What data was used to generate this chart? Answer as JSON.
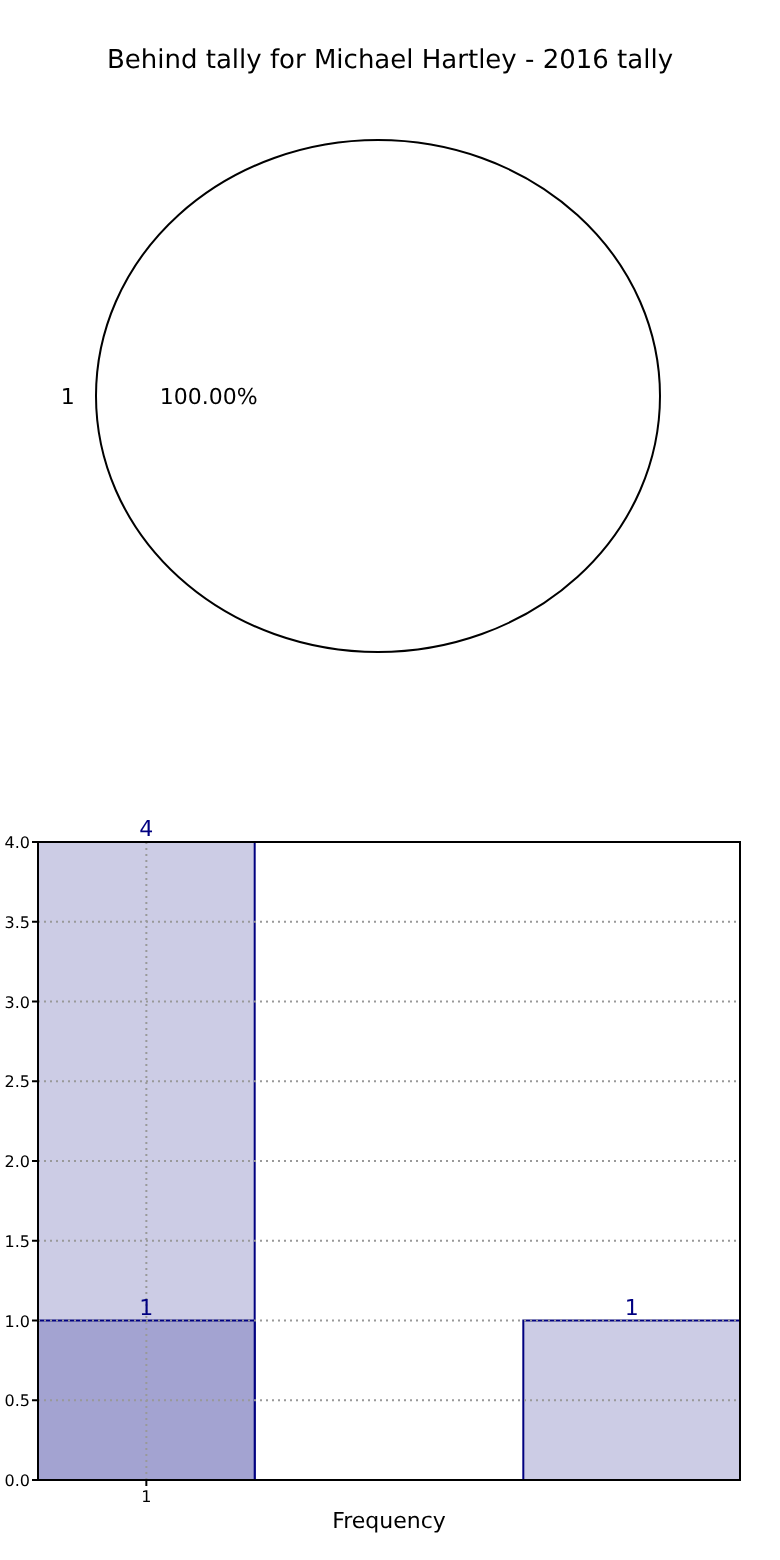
{
  "chart_data": [
    {
      "type": "pie",
      "title": "Behind tally for Michael Hartley - 2016 tally",
      "categories": [
        "1"
      ],
      "values": [
        100
      ],
      "value_labels": [
        "100.00%"
      ],
      "colors": [
        "#ffffff"
      ]
    },
    {
      "type": "bar",
      "xlabel": "Frequency",
      "categories": [
        "1",
        null,
        null
      ],
      "series": [
        {
          "color": "#ccccE5",
          "values": [
            4,
            null,
            1
          ]
        },
        {
          "color": "#a3a3d1",
          "values": [
            1,
            null,
            null
          ]
        }
      ],
      "ylim": [
        0,
        4
      ],
      "yticks": [
        {
          "value": 0,
          "label": "0.0"
        },
        {
          "value": 0.5,
          "label": "0.5"
        },
        {
          "value": 1,
          "label": "1.0"
        },
        {
          "value": 1.5,
          "label": "1.5"
        },
        {
          "value": 2,
          "label": "2.0"
        },
        {
          "value": 2.5,
          "label": "2.5"
        },
        {
          "value": 3,
          "label": "3.0"
        },
        {
          "value": 3.5,
          "label": "3.5"
        },
        {
          "value": 4,
          "label": "4.0"
        }
      ],
      "grid": true,
      "data_labels": true
    }
  ]
}
